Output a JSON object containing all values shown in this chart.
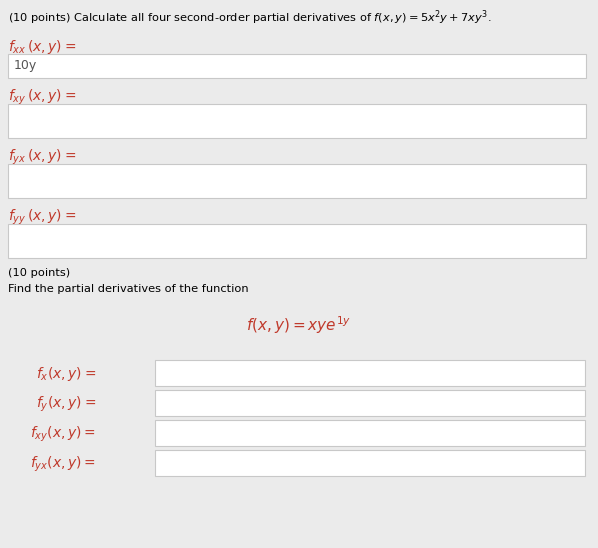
{
  "bg_color": "#ebebeb",
  "white_box_color": "#ffffff",
  "border_color": "#c8c8c8",
  "text_color": "#000000",
  "orange_color": "#c0392b",
  "answer_color": "#555555",
  "title1": "(10 points) Calculate all four second-order partial derivatives of $f(x, y) = 5x^2y + 7xy^3$.",
  "label_fxx": "$f_{xx}\\,(x, y) =$",
  "label_fxy": "$f_{xy}\\,(x, y) =$",
  "label_fyx": "$f_{yx}\\,(x, y) =$",
  "label_fyy": "$f_{yy}\\,(x, y) =$",
  "answer_fxx": "10y",
  "title2_line1": "(10 points)",
  "title2_line2": "Find the partial derivatives of the function",
  "func2": "$f(x, y) = xye^{1y}$",
  "label_fx": "$f_x(x, y) =$",
  "label_fy": "$f_y(x, y) =$",
  "label_fxy2": "$f_{xy}(x, y) =$",
  "label_fyx2": "$f_{yx}(x, y) =$",
  "fig_width": 5.98,
  "fig_height": 5.48,
  "dpi": 100
}
